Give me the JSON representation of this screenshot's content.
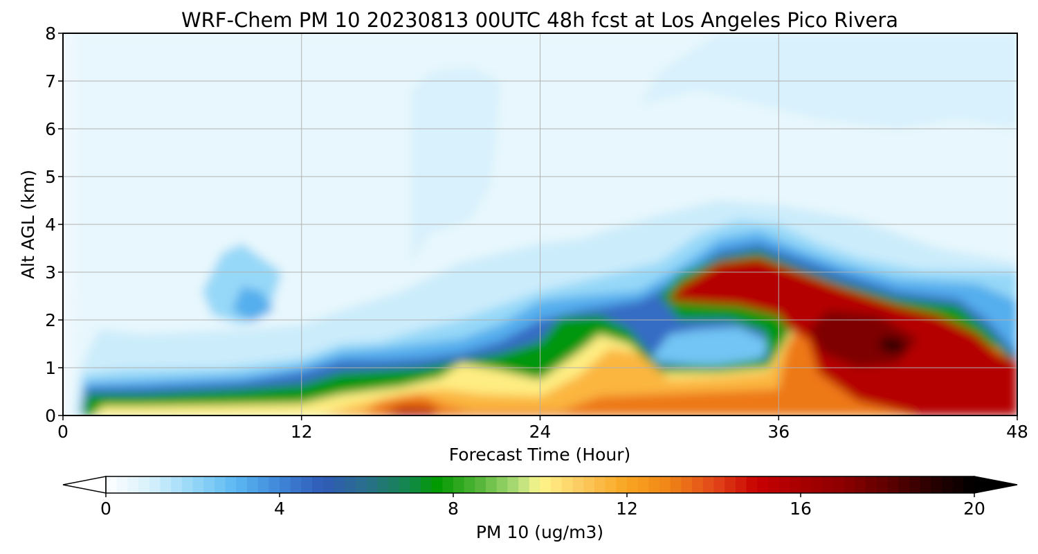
{
  "chart_data": {
    "type": "heatmap",
    "title": "WRF-Chem PM 10  20230813 00UTC 48h fcst at Los Angeles Pico Rivera",
    "xlabel": "Forecast Time (Hour)",
    "ylabel": "Alt AGL (km)",
    "xlim": [
      0,
      48
    ],
    "ylim": [
      0,
      8
    ],
    "xticks": [
      "0",
      "12",
      "24",
      "36",
      "48"
    ],
    "yticks": [
      "0",
      "1",
      "2",
      "3",
      "4",
      "5",
      "6",
      "7",
      "8"
    ],
    "grid": true,
    "colorbar": {
      "label": "PM 10  (ug/m3)",
      "range": [
        0,
        20
      ],
      "ticks": [
        "0",
        "4",
        "8",
        "12",
        "16",
        "20"
      ],
      "extend": "both",
      "stops": [
        {
          "v": 0,
          "c": "#ffffff"
        },
        {
          "v": 1,
          "c": "#d8f1fc"
        },
        {
          "v": 2,
          "c": "#96d8f8"
        },
        {
          "v": 3,
          "c": "#5ab8f2"
        },
        {
          "v": 4,
          "c": "#3f86d8"
        },
        {
          "v": 5,
          "c": "#2f5bb6"
        },
        {
          "v": 6,
          "c": "#2a6e8c"
        },
        {
          "v": 7,
          "c": "#12884a"
        },
        {
          "v": 7.6,
          "c": "#009900"
        },
        {
          "v": 8.6,
          "c": "#55b53a"
        },
        {
          "v": 9.5,
          "c": "#b3de7b"
        },
        {
          "v": 10,
          "c": "#fff68c"
        },
        {
          "v": 11,
          "c": "#fcc75c"
        },
        {
          "v": 12,
          "c": "#f9a521"
        },
        {
          "v": 13,
          "c": "#f08415"
        },
        {
          "v": 14,
          "c": "#e2471a"
        },
        {
          "v": 15,
          "c": "#c80000"
        },
        {
          "v": 16,
          "c": "#a80000"
        },
        {
          "v": 17,
          "c": "#8c0000"
        },
        {
          "v": 18,
          "c": "#5e0000"
        },
        {
          "v": 19,
          "c": "#2a0000"
        },
        {
          "v": 20,
          "c": "#000000"
        }
      ]
    },
    "layers": [
      {
        "value": 0.6,
        "points": [
          [
            0.4,
            0
          ],
          [
            0.6,
            3
          ],
          [
            0.6,
            8
          ],
          [
            48,
            8
          ],
          [
            48,
            0
          ]
        ]
      },
      {
        "value": 1.2,
        "points": [
          [
            0.6,
            0
          ],
          [
            0.9,
            1.0
          ],
          [
            1.8,
            1.8
          ],
          [
            4,
            1.7
          ],
          [
            9,
            1.8
          ],
          [
            12,
            1.9
          ],
          [
            14,
            2.2
          ],
          [
            17,
            2.6
          ],
          [
            19,
            3.0
          ],
          [
            20,
            3.2
          ],
          [
            24,
            3.6
          ],
          [
            26,
            3.7
          ],
          [
            30,
            4.2
          ],
          [
            33,
            4.5
          ],
          [
            36,
            4.4
          ],
          [
            40,
            4.1
          ],
          [
            44,
            3.5
          ],
          [
            48,
            3.2
          ],
          [
            48,
            0
          ]
        ]
      },
      {
        "value": 1.0,
        "points": [
          [
            17.5,
            3.2
          ],
          [
            17.5,
            6.8
          ],
          [
            18.5,
            7.2
          ],
          [
            20.5,
            7.3
          ],
          [
            22,
            7.0
          ],
          [
            21.8,
            5.8
          ],
          [
            21.5,
            4.8
          ],
          [
            20.5,
            4.1
          ],
          [
            18.5,
            3.8
          ]
        ]
      },
      {
        "value": 1.0,
        "points": [
          [
            29,
            6.5
          ],
          [
            30,
            7.2
          ],
          [
            33,
            8
          ],
          [
            48,
            8
          ],
          [
            48,
            6.0
          ],
          [
            45,
            6.2
          ],
          [
            42,
            6.0
          ],
          [
            38,
            6.2
          ],
          [
            35,
            6.5
          ],
          [
            32,
            6.8
          ]
        ]
      },
      {
        "value": 2.0,
        "points": [
          [
            7,
            2.6
          ],
          [
            8,
            3.4
          ],
          [
            9,
            3.6
          ],
          [
            10,
            3.3
          ],
          [
            11,
            3.0
          ],
          [
            10.5,
            2.3
          ],
          [
            9,
            1.9
          ],
          [
            7.5,
            2.1
          ]
        ]
      },
      {
        "value": 2.0,
        "points": [
          [
            0.8,
            0
          ],
          [
            1.0,
            0.85
          ],
          [
            3,
            0.95
          ],
          [
            8,
            1.0
          ],
          [
            12,
            1.2
          ],
          [
            14,
            1.5
          ],
          [
            16,
            1.55
          ],
          [
            18,
            1.8
          ],
          [
            20,
            2.0
          ],
          [
            22,
            2.3
          ],
          [
            24,
            2.6
          ],
          [
            27,
            2.9
          ],
          [
            30,
            3.2
          ],
          [
            32,
            3.8
          ],
          [
            34,
            4.1
          ],
          [
            36,
            4.0
          ],
          [
            38,
            3.6
          ],
          [
            40,
            3.3
          ],
          [
            43,
            3.05
          ],
          [
            48,
            3.0
          ],
          [
            48,
            0
          ]
        ]
      },
      {
        "value": 3.2,
        "points": [
          [
            8.5,
            2.2
          ],
          [
            9,
            2.7
          ],
          [
            10,
            2.6
          ],
          [
            10.6,
            2.2
          ],
          [
            9.5,
            1.95
          ]
        ]
      },
      {
        "value": 3.2,
        "points": [
          [
            0.9,
            0
          ],
          [
            1.1,
            0.7
          ],
          [
            4,
            0.75
          ],
          [
            9,
            0.85
          ],
          [
            12,
            1.05
          ],
          [
            14,
            1.35
          ],
          [
            16,
            1.4
          ],
          [
            18,
            1.5
          ],
          [
            20,
            1.6
          ],
          [
            22,
            1.9
          ],
          [
            24,
            2.4
          ],
          [
            26,
            2.5
          ],
          [
            29,
            2.6
          ],
          [
            31,
            3.1
          ],
          [
            33,
            3.7
          ],
          [
            35,
            3.85
          ],
          [
            37,
            3.5
          ],
          [
            39,
            3.2
          ],
          [
            42,
            2.85
          ],
          [
            46,
            2.75
          ],
          [
            48,
            2.4
          ],
          [
            48,
            0
          ]
        ]
      },
      {
        "value": 3.8,
        "points": [
          [
            31.5,
            1.2
          ],
          [
            32,
            1.65
          ],
          [
            33.5,
            1.8
          ],
          [
            35,
            1.55
          ],
          [
            34,
            1.2
          ]
        ]
      },
      {
        "value": 4.6,
        "points": [
          [
            0.9,
            0
          ],
          [
            1.1,
            0.58
          ],
          [
            4,
            0.6
          ],
          [
            9,
            0.7
          ],
          [
            12,
            0.9
          ],
          [
            14,
            1.15
          ],
          [
            16,
            1.15
          ],
          [
            18,
            1.2
          ],
          [
            20,
            1.3
          ],
          [
            22,
            1.55
          ],
          [
            24,
            2.0
          ],
          [
            26,
            2.2
          ],
          [
            29,
            2.4
          ],
          [
            31,
            2.85
          ],
          [
            33,
            3.45
          ],
          [
            35,
            3.6
          ],
          [
            37,
            3.3
          ],
          [
            39,
            3.0
          ],
          [
            42,
            2.6
          ],
          [
            45,
            2.45
          ],
          [
            46.5,
            2.0
          ],
          [
            48,
            1.3
          ],
          [
            48,
            0
          ]
        ]
      },
      {
        "value": 2.6,
        "points": [
          [
            29.5,
            1.15
          ],
          [
            30.5,
            1.7
          ],
          [
            32,
            1.8
          ],
          [
            34,
            1.85
          ],
          [
            35.5,
            1.55
          ],
          [
            35.2,
            1.2
          ],
          [
            33,
            1.0
          ]
        ]
      },
      {
        "value": 7.5,
        "points": [
          [
            0.9,
            0
          ],
          [
            1.2,
            0.45
          ],
          [
            4,
            0.45
          ],
          [
            9,
            0.55
          ],
          [
            12,
            0.65
          ],
          [
            14,
            0.9
          ],
          [
            16,
            0.95
          ],
          [
            18,
            1.0
          ],
          [
            20,
            1.15
          ],
          [
            22,
            1.3
          ],
          [
            24,
            1.55
          ],
          [
            25,
            2.05
          ],
          [
            27,
            2.1
          ],
          [
            28.5,
            1.8
          ],
          [
            30,
            1.05
          ],
          [
            33,
            1.05
          ],
          [
            35.5,
            1.2
          ],
          [
            35.3,
            1.75
          ],
          [
            33.5,
            2.0
          ],
          [
            31,
            2.0
          ],
          [
            30,
            2.5
          ],
          [
            31,
            2.95
          ],
          [
            33,
            3.3
          ],
          [
            35,
            3.45
          ],
          [
            37,
            3.1
          ],
          [
            39,
            2.8
          ],
          [
            42,
            2.45
          ],
          [
            45,
            2.3
          ],
          [
            46.5,
            1.8
          ],
          [
            48,
            1.15
          ],
          [
            48,
            0
          ]
        ]
      },
      {
        "value": 10.2,
        "points": [
          [
            1.5,
            0
          ],
          [
            2,
            0.2
          ],
          [
            4,
            0.2
          ],
          [
            8,
            0.22
          ],
          [
            12,
            0.25
          ],
          [
            14,
            0.45
          ],
          [
            17,
            0.6
          ],
          [
            19,
            0.8
          ],
          [
            20,
            1.1
          ],
          [
            22,
            0.95
          ],
          [
            24,
            0.75
          ],
          [
            26,
            1.35
          ],
          [
            27,
            1.7
          ],
          [
            28.5,
            1.5
          ],
          [
            30,
            0.9
          ],
          [
            33,
            0.9
          ],
          [
            35.5,
            1.0
          ],
          [
            36.5,
            1.7
          ],
          [
            37,
            2.1
          ],
          [
            40,
            2.0
          ],
          [
            43,
            1.85
          ],
          [
            46,
            1.45
          ],
          [
            48,
            0.9
          ],
          [
            48,
            0
          ]
        ]
      },
      {
        "value": 11.5,
        "points": [
          [
            13,
            0
          ],
          [
            14.5,
            0.2
          ],
          [
            17,
            0.45
          ],
          [
            19,
            0.55
          ],
          [
            21,
            0.45
          ],
          [
            24,
            0.4
          ],
          [
            26,
            0.85
          ],
          [
            27.5,
            1.4
          ],
          [
            29,
            1.3
          ],
          [
            30.5,
            0.75
          ],
          [
            33,
            0.8
          ],
          [
            35.5,
            0.9
          ],
          [
            36.5,
            1.6
          ],
          [
            38,
            2.0
          ],
          [
            43,
            1.8
          ],
          [
            48,
            0.9
          ],
          [
            48,
            0
          ]
        ]
      },
      {
        "value": 13.2,
        "points": [
          [
            15,
            0
          ],
          [
            16,
            0.3
          ],
          [
            18,
            0.45
          ],
          [
            19,
            0.25
          ],
          [
            20.5,
            0.1
          ],
          [
            25,
            0.1
          ],
          [
            27,
            0.4
          ],
          [
            30,
            0.45
          ],
          [
            33,
            0.5
          ],
          [
            36,
            0.55
          ],
          [
            36.5,
            1.5
          ],
          [
            37.5,
            2.4
          ],
          [
            39,
            2.6
          ],
          [
            43,
            2.1
          ],
          [
            47,
            1.4
          ],
          [
            48,
            1.0
          ],
          [
            48,
            0
          ]
        ]
      },
      {
        "value": 15.6,
        "points": [
          [
            16,
            0
          ],
          [
            17,
            0.2
          ],
          [
            18.5,
            0.18
          ],
          [
            19,
            0
          ]
        ]
      },
      {
        "value": 15.6,
        "points": [
          [
            30.5,
            2.4
          ],
          [
            31,
            2.7
          ],
          [
            33,
            3.2
          ],
          [
            35,
            3.3
          ],
          [
            37,
            3.0
          ],
          [
            39,
            2.7
          ],
          [
            42,
            2.3
          ],
          [
            44,
            2.1
          ],
          [
            46,
            1.7
          ],
          [
            47,
            1.3
          ],
          [
            48,
            1.15
          ],
          [
            48,
            0
          ],
          [
            43,
            0
          ],
          [
            40,
            0.3
          ],
          [
            38,
            0.9
          ],
          [
            37.5,
            1.6
          ],
          [
            36.5,
            1.8
          ],
          [
            36,
            2.1
          ],
          [
            34,
            2.3
          ],
          [
            32,
            2.35
          ]
        ]
      },
      {
        "value": 17.3,
        "points": [
          [
            37.5,
            1.8
          ],
          [
            38.5,
            2.2
          ],
          [
            41,
            2.1
          ],
          [
            43,
            1.6
          ],
          [
            42,
            1.1
          ],
          [
            40,
            1.0
          ],
          [
            38.2,
            1.3
          ]
        ]
      },
      {
        "value": 18.8,
        "points": [
          [
            41,
            1.45
          ],
          [
            41.3,
            1.65
          ],
          [
            42.2,
            1.6
          ],
          [
            42.4,
            1.35
          ],
          [
            41.6,
            1.3
          ]
        ]
      }
    ]
  }
}
